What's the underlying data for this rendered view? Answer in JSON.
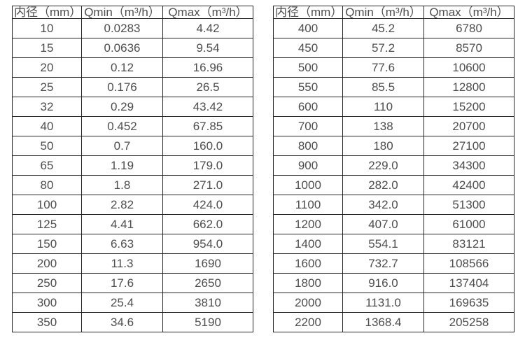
{
  "page": {
    "background_color": "#ffffff",
    "border_color": "#262626",
    "text_color": "#4d4d4d"
  },
  "tables": [
    {
      "name": "flow-table-small-diameters",
      "headers": [
        "内径（mm）",
        "Qmin（m³/h）",
        "Qmax（m³/h）"
      ],
      "rows": [
        [
          "10",
          "0.0283",
          "4.42"
        ],
        [
          "15",
          "0.0636",
          "9.54"
        ],
        [
          "20",
          "0.12",
          "16.96"
        ],
        [
          "25",
          "0.176",
          "26.5"
        ],
        [
          "32",
          "0.29",
          "43.42"
        ],
        [
          "40",
          "0.452",
          "67.85"
        ],
        [
          "50",
          "0.7",
          "160.0"
        ],
        [
          "65",
          "1.19",
          "179.0"
        ],
        [
          "80",
          "1.8",
          "271.0"
        ],
        [
          "100",
          "2.82",
          "424.0"
        ],
        [
          "125",
          "4.41",
          "662.0"
        ],
        [
          "150",
          "6.63",
          "954.0"
        ],
        [
          "200",
          "11.3",
          "1690"
        ],
        [
          "250",
          "17.6",
          "2650"
        ],
        [
          "300",
          "25.4",
          "3810"
        ],
        [
          "350",
          "34.6",
          "5190"
        ]
      ]
    },
    {
      "name": "flow-table-large-diameters",
      "headers": [
        "内径（mm）",
        "Qmin（m³/h）",
        "Qmax（m³/h）"
      ],
      "rows": [
        [
          "400",
          "45.2",
          "6780"
        ],
        [
          "450",
          "57.2",
          "8570"
        ],
        [
          "500",
          "77.6",
          "10600"
        ],
        [
          "550",
          "85.5",
          "12800"
        ],
        [
          "600",
          "110",
          "15200"
        ],
        [
          "700",
          "138",
          "20700"
        ],
        [
          "800",
          "180",
          "27100"
        ],
        [
          "900",
          "229.0",
          "34300"
        ],
        [
          "1000",
          "282.0",
          "42400"
        ],
        [
          "1100",
          "342.0",
          "51300"
        ],
        [
          "1200",
          "407.0",
          "61000"
        ],
        [
          "1400",
          "554.1",
          "83121"
        ],
        [
          "1600",
          "732.7",
          "108566"
        ],
        [
          "1800",
          "916.0",
          "137404"
        ],
        [
          "2000",
          "1131.0",
          "169635"
        ],
        [
          "2200",
          "1368.4",
          "205258"
        ]
      ]
    }
  ]
}
